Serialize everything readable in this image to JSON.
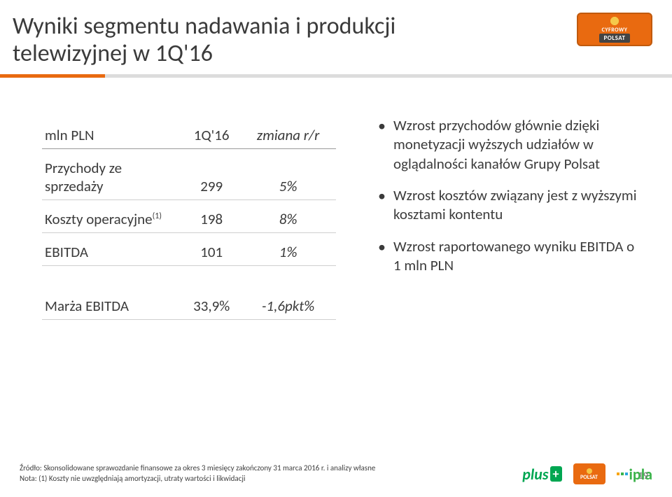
{
  "title": "Wyniki segmentu nadawania i produkcji telewizyjnej w 1Q'16",
  "logo": {
    "line1": "CYFROWY",
    "line2": "POLSAT"
  },
  "table": {
    "header": {
      "c1": "mln PLN",
      "c2": "1Q'16",
      "c3": "zmiana r/r"
    },
    "rows": [
      {
        "c1": "Przychody ze sprzedaży",
        "c2": "299",
        "c3": "5%"
      },
      {
        "c1": "Koszty operacyjne",
        "c1_sup": "(1)",
        "c2": "198",
        "c3": "8%"
      },
      {
        "c1": "EBITDA",
        "c2": "101",
        "c3": "1%"
      },
      {
        "c1": "Marża EBITDA",
        "c2": "33,9%",
        "c3": "-1,6pkt%"
      }
    ]
  },
  "bullets": [
    "Wzrost przychodów głównie dzięki monetyzacji wyższych udziałów w oglądalności kanałów Grupy Polsat",
    "Wzrost kosztów związany jest z wyższymi kosztami kontentu",
    "Wzrost raportowanego wyniku EBITDA o 1 mln PLN"
  ],
  "footnote1": "Źródło: Skonsolidowane sprawozdanie finansowe za okres 3 miesięcy zakończony 31 marca 2016 r. i analizy własne",
  "footnote2": "Nota: (1) Koszty nie uwzględniają amortyzacji, utraty wartości i likwidacji",
  "brands": {
    "plus": "plus",
    "polsat": "POLSAT",
    "ipla": "ipla"
  },
  "page_number": "19",
  "colors": {
    "accent": "#e96a10",
    "grey_rule": "#dcdcdc",
    "text": "#3b3b3b",
    "green": "#00a651"
  }
}
